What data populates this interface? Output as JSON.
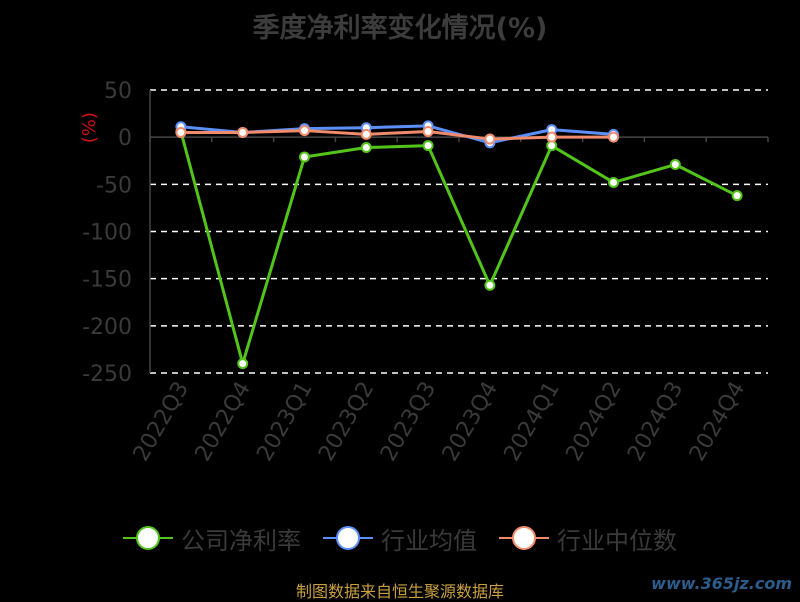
{
  "chart_data": {
    "type": "line",
    "title": "季度净利率变化情况(%)",
    "ylabel": "(%)",
    "categories": [
      "2022Q3",
      "2022Q4",
      "2023Q1",
      "2023Q2",
      "2023Q3",
      "2023Q4",
      "2024Q1",
      "2024Q2",
      "2024Q3",
      "2024Q4"
    ],
    "ylim": [
      -250,
      50
    ],
    "yticks": [
      50,
      0,
      -50,
      -100,
      -150,
      -200,
      -250
    ],
    "grid": true,
    "legend_position": "bottom",
    "series": [
      {
        "name": "公司净利率",
        "color": "#52c41a",
        "values": [
          6,
          -240,
          -21,
          -11,
          -9,
          -157,
          -9,
          -48,
          -29,
          -62
        ]
      },
      {
        "name": "行业均值",
        "color": "#5b8ff9",
        "values": [
          11,
          5,
          9,
          10,
          12,
          -6,
          8,
          3,
          null,
          null
        ]
      },
      {
        "name": "行业中位数",
        "color": "#f08c6c",
        "values": [
          5,
          5,
          7,
          3,
          6,
          -2,
          0,
          0,
          null,
          null
        ]
      }
    ]
  },
  "footer": "制图数据来自恒生聚源数据库",
  "watermark": "www.365jz.com"
}
